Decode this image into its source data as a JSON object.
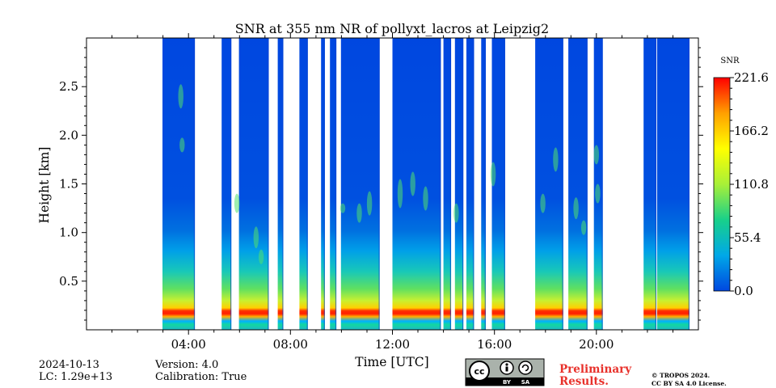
{
  "chart_data": {
    "type": "heatmap",
    "title": "SNR at 355 nm NR of pollyxt_lacros at Leipzig2",
    "xlabel": "Time [UTC]",
    "ylabel": "Height [km]",
    "xlim": [
      0,
      24
    ],
    "ylim": [
      0,
      3.0
    ],
    "x_major_ticks": [
      4,
      8,
      12,
      16,
      20
    ],
    "x_tick_labels": [
      "04:00",
      "08:00",
      "12:00",
      "16:00",
      "20:00"
    ],
    "y_ticks": [
      0.5,
      1.0,
      1.5,
      2.0,
      2.5
    ],
    "y_tick_labels": [
      "0.5",
      "1.0",
      "1.5",
      "2.0",
      "2.5"
    ],
    "colorbar": {
      "label": "SNR",
      "min": 0.0,
      "max": 221.6,
      "ticks": [
        0.0,
        55.4,
        110.8,
        166.2,
        221.6
      ],
      "tick_labels": [
        "0.0",
        "55.4",
        "110.8",
        "166.2",
        "221.6"
      ]
    },
    "data_segments_hours": [
      [
        2.98,
        4.25
      ],
      [
        5.3,
        5.68
      ],
      [
        5.98,
        7.15
      ],
      [
        7.5,
        7.72
      ],
      [
        8.35,
        8.68
      ],
      [
        9.2,
        9.35
      ],
      [
        9.55,
        9.8
      ],
      [
        9.98,
        11.5
      ],
      [
        12.0,
        13.9
      ],
      [
        14.0,
        14.3
      ],
      [
        14.45,
        14.78
      ],
      [
        14.9,
        15.2
      ],
      [
        15.48,
        15.66
      ],
      [
        15.9,
        16.42
      ],
      [
        17.6,
        18.7
      ],
      [
        18.9,
        19.65
      ],
      [
        19.9,
        20.25
      ],
      [
        21.85,
        22.35
      ],
      [
        22.38,
        23.65
      ]
    ],
    "profile_features": [
      {
        "height_km": [
          0.1,
          0.2
        ],
        "snr_level": "peak ~221 (near-field maximum, red)"
      },
      {
        "height_km": [
          0.2,
          0.5
        ],
        "snr_level": "high, decreasing with height (yellow to green)"
      },
      {
        "height_km": [
          0.5,
          1.0
        ],
        "snr_level": "moderate (cyan)"
      },
      {
        "height_km": [
          1.0,
          3.0
        ],
        "snr_level": "low ~0 (blue), scattered cloud/aerosol features 1.1-1.8 km"
      }
    ]
  },
  "footer": {
    "date": "2024-10-13",
    "lc": "LC: 1.29e+13",
    "version": "Version: 4.0",
    "calibration": "Calibration: True",
    "preliminary_line1": "Preliminary",
    "preliminary_line2": "Results.",
    "copyright_line1": "© TROPOS 2024.",
    "copyright_line2": "CC BY SA 4.0 License.",
    "license_badge_text": [
      "cc",
      "BY",
      "SA"
    ]
  },
  "colors": {
    "colormap": [
      "#0047e0",
      "#00a8e8",
      "#18d08a",
      "#a8f038",
      "#ffff00",
      "#ffa000",
      "#ff0000"
    ],
    "preliminary": "#e8312b"
  }
}
